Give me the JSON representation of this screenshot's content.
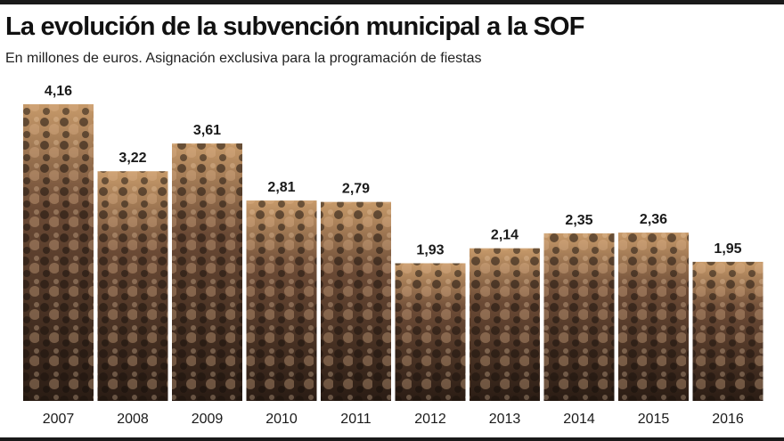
{
  "header": {
    "title": "La evolución de la subvención municipal a la SOF",
    "subtitle": "En millones de euros. Asignación exclusiva para la programación de fiestas"
  },
  "colors": {
    "rule": "#1a1a1a",
    "photo_dark": "#2a1c14",
    "photo_mid": "#6b4a35",
    "photo_light": "#c79a6a"
  },
  "chart_data": {
    "type": "bar",
    "title": "La evolución de la subvención municipal a la SOF",
    "subtitle": "En millones de euros. Asignación exclusiva para la programación de fiestas",
    "categories": [
      "2007",
      "2008",
      "2009",
      "2010",
      "2011",
      "2012",
      "2013",
      "2014",
      "2015",
      "2016"
    ],
    "values": [
      4.16,
      3.22,
      3.61,
      2.81,
      2.79,
      1.93,
      2.14,
      2.35,
      2.36,
      1.95
    ],
    "value_labels": [
      "4,16",
      "3,22",
      "3,61",
      "2,81",
      "2,79",
      "1,93",
      "2,14",
      "2,35",
      "2,36",
      "1,95"
    ],
    "ylim": [
      0,
      4.16
    ],
    "grid": false,
    "legend": "none",
    "bar_fill": "crowd-photo"
  }
}
